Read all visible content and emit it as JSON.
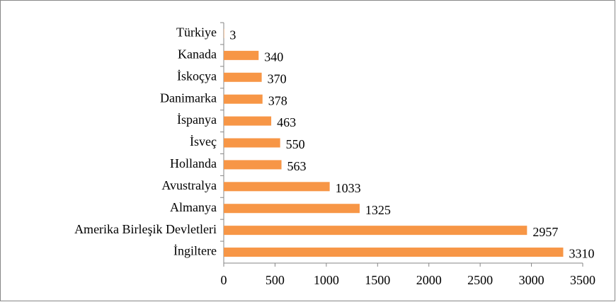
{
  "chart_data": {
    "type": "bar",
    "orientation": "horizontal",
    "categories": [
      "Türkiye",
      "Kanada",
      "İskoçya",
      "Danimarka",
      "İspanya",
      "İsveç",
      "Hollanda",
      "Avustralya",
      "Almanya",
      "Amerika Birleşik Devletleri",
      "İngiltere"
    ],
    "values": [
      3,
      340,
      370,
      378,
      463,
      550,
      563,
      1033,
      1325,
      2957,
      3310
    ],
    "color": "#f79646",
    "xlim": [
      0,
      3500
    ],
    "xticks": [
      0,
      500,
      1000,
      1500,
      2000,
      2500,
      3000,
      3500
    ],
    "grid": false
  }
}
